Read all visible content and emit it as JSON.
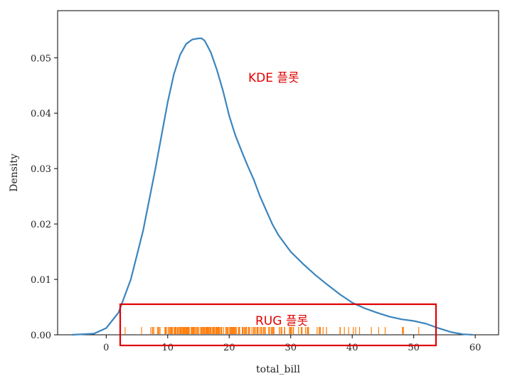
{
  "chart_data": {
    "type": "line",
    "xlabel": "total_bill",
    "ylabel": "Density",
    "xlim": [
      -7.9,
      63.8
    ],
    "ylim": [
      0.0,
      0.0585
    ],
    "x_ticks": [
      0,
      10,
      20,
      30,
      40,
      50,
      60
    ],
    "y_ticks": [
      0.0,
      0.01,
      0.02,
      0.03,
      0.04,
      0.05
    ],
    "x_tick_labels": [
      "0",
      "10",
      "20",
      "30",
      "40",
      "50",
      "60"
    ],
    "y_tick_labels": [
      "0.00",
      "0.01",
      "0.02",
      "0.03",
      "0.04",
      "0.05"
    ],
    "series": [
      {
        "kind": "kde",
        "color": "#3a85be",
        "x": [
          -5.6,
          -2,
          0,
          2,
          4,
          6,
          8,
          9,
          10,
          11,
          12,
          13,
          14,
          15,
          15.5,
          16,
          17,
          18,
          19,
          20,
          21,
          22,
          23,
          24,
          25,
          26,
          27,
          28,
          30,
          32,
          34,
          36,
          38,
          40,
          42,
          44,
          46,
          48,
          50,
          52,
          54,
          56,
          58,
          59.6
        ],
        "y": [
          0.0,
          0.0002,
          0.0012,
          0.004,
          0.01,
          0.0188,
          0.03,
          0.036,
          0.042,
          0.047,
          0.0505,
          0.0525,
          0.0533,
          0.0535,
          0.0535,
          0.0531,
          0.051,
          0.0478,
          0.044,
          0.0395,
          0.036,
          0.0332,
          0.0305,
          0.028,
          0.025,
          0.0225,
          0.02,
          0.018,
          0.015,
          0.0128,
          0.0108,
          0.009,
          0.0073,
          0.0058,
          0.0048,
          0.004,
          0.0033,
          0.0028,
          0.0025,
          0.002,
          0.0012,
          0.0005,
          0.0001,
          0.0
        ]
      },
      {
        "kind": "rug",
        "color": "#ff7f0e",
        "values": [
          3.07,
          5.75,
          7.25,
          7.51,
          7.56,
          7.74,
          8.35,
          8.51,
          8.52,
          8.58,
          8.77,
          9.55,
          9.6,
          9.68,
          9.78,
          10.07,
          10.27,
          10.29,
          10.33,
          10.34,
          10.51,
          10.59,
          10.63,
          10.65,
          10.77,
          11.02,
          11.17,
          11.24,
          11.35,
          11.38,
          11.59,
          11.61,
          11.69,
          11.87,
          12.02,
          12.03,
          12.16,
          12.26,
          12.43,
          12.46,
          12.48,
          12.54,
          12.6,
          12.66,
          12.69,
          12.74,
          12.76,
          12.9,
          13.0,
          13.03,
          13.13,
          13.16,
          13.27,
          13.28,
          13.37,
          13.39,
          13.42,
          13.51,
          13.81,
          13.94,
          14.07,
          14.15,
          14.26,
          14.31,
          14.48,
          14.52,
          14.73,
          14.78,
          14.83,
          15.01,
          15.04,
          15.06,
          15.36,
          15.38,
          15.42,
          15.48,
          15.53,
          15.69,
          15.77,
          15.81,
          15.95,
          15.98,
          16.0,
          16.04,
          16.21,
          16.27,
          16.29,
          16.31,
          16.4,
          16.43,
          16.45,
          16.47,
          16.58,
          16.66,
          16.82,
          16.93,
          16.97,
          16.99,
          17.07,
          17.29,
          17.31,
          17.46,
          17.47,
          17.51,
          17.59,
          17.78,
          17.81,
          17.82,
          17.89,
          17.92,
          18.04,
          18.15,
          18.24,
          18.26,
          18.28,
          18.29,
          18.35,
          18.43,
          18.64,
          18.69,
          18.71,
          18.78,
          19.08,
          19.44,
          19.49,
          19.65,
          19.77,
          19.81,
          19.82,
          20.08,
          20.23,
          20.27,
          20.29,
          20.45,
          20.49,
          20.53,
          20.65,
          20.69,
          20.76,
          20.9,
          20.92,
          21.01,
          21.16,
          21.5,
          21.58,
          21.7,
          22.12,
          22.23,
          22.42,
          22.49,
          22.67,
          22.75,
          22.76,
          22.82,
          23.1,
          23.17,
          23.33,
          23.68,
          23.95,
          24.01,
          24.06,
          24.08,
          24.27,
          24.52,
          24.55,
          24.59,
          24.71,
          25.0,
          25.21,
          25.28,
          25.29,
          25.56,
          25.71,
          25.89,
          26.41,
          26.59,
          26.86,
          26.88,
          27.05,
          27.18,
          27.2,
          27.28,
          28.15,
          28.17,
          28.44,
          28.55,
          28.97,
          29.03,
          29.8,
          29.85,
          29.93,
          30.06,
          30.14,
          30.4,
          30.46,
          31.27,
          31.71,
          31.85,
          32.4,
          32.68,
          32.83,
          32.9,
          34.3,
          34.63,
          34.65,
          34.81,
          34.83,
          35.26,
          35.83,
          38.01,
          38.07,
          38.73,
          39.42,
          40.17,
          40.55,
          41.19,
          43.11,
          44.3,
          45.35,
          48.17,
          48.27,
          48.33,
          50.81
        ]
      }
    ],
    "annotations": [
      {
        "text": "KDE 플롯",
        "color": "#e00000"
      },
      {
        "text": "RUG 플롯",
        "color": "#e00000"
      }
    ],
    "highlight_box_color": "#e00000",
    "grid": false,
    "legend": "none"
  }
}
